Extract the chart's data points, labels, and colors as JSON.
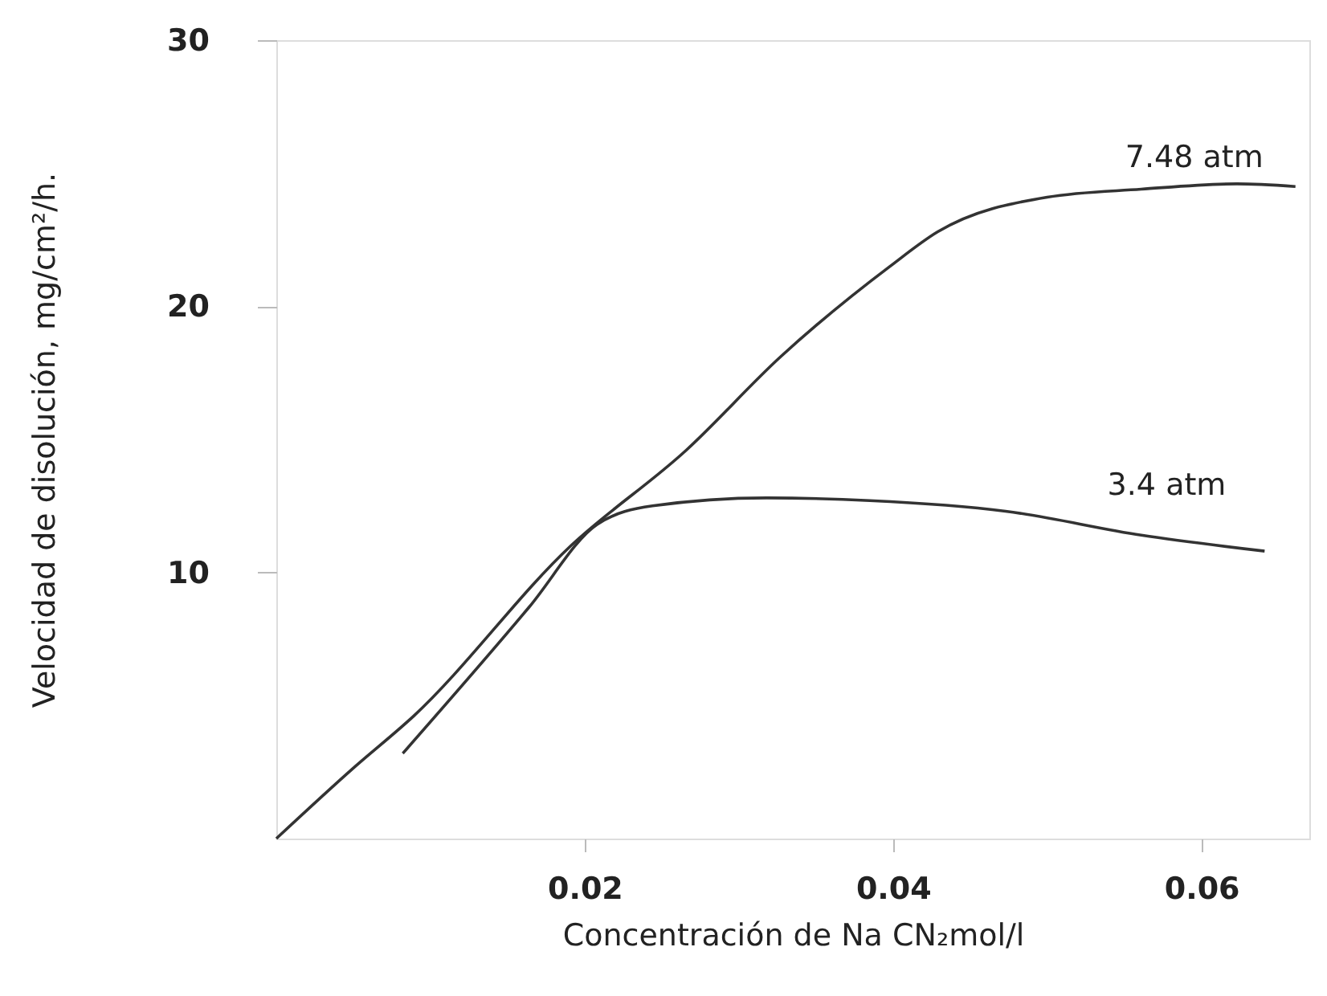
{
  "chart_data": {
    "type": "line",
    "xlabel": "Concentración de Na CN₂mol/l",
    "ylabel": "Velocidad de disolución, mg/cm²/h.",
    "xlim": [
      0,
      0.067
    ],
    "ylim": [
      0,
      30
    ],
    "xticks": [
      0.02,
      0.04,
      0.06
    ],
    "yticks": [
      10,
      20,
      30
    ],
    "grid": false,
    "marker": "none",
    "line_style": "solid",
    "series": [
      {
        "name": "7.48 atm",
        "color": "#333333",
        "x": [
          0,
          0.0049,
          0.0089,
          0.0191,
          0.0266,
          0.0327,
          0.0398,
          0.0429,
          0.05,
          0.0561,
          0.0623,
          0.0661
        ],
        "values": [
          0,
          2.6,
          4.6,
          11.0,
          14.6,
          18.1,
          21.5,
          22.8,
          24.1,
          24.4,
          24.6,
          24.5
        ]
      },
      {
        "name": "3.4 atm",
        "color": "#333333",
        "x": [
          0.0082,
          0.0164,
          0.0208,
          0.0244,
          0.0318,
          0.0385,
          0.0473,
          0.0561,
          0.0641
        ],
        "values": [
          3.2,
          8.7,
          11.8,
          12.5,
          12.8,
          12.7,
          12.3,
          11.4,
          10.8
        ]
      }
    ]
  }
}
